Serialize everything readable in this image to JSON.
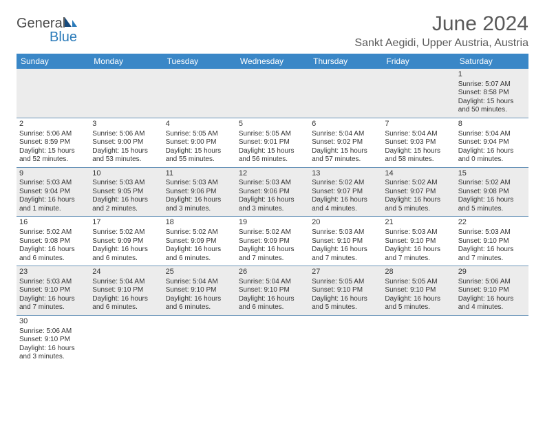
{
  "logo": {
    "text1": "General",
    "text2": "Blue"
  },
  "title": "June 2024",
  "location": "Sankt Aegidi, Upper Austria, Austria",
  "colors": {
    "header_bg": "#3a87c7",
    "header_text": "#ffffff",
    "row_alt_bg": "#ececec",
    "border": "#6a94b8",
    "logo_blue": "#2a7ab9",
    "text": "#333333"
  },
  "weekdays": [
    "Sunday",
    "Monday",
    "Tuesday",
    "Wednesday",
    "Thursday",
    "Friday",
    "Saturday"
  ],
  "weeks": [
    [
      null,
      null,
      null,
      null,
      null,
      null,
      {
        "d": "1",
        "sr": "Sunrise: 5:07 AM",
        "ss": "Sunset: 8:58 PM",
        "dl1": "Daylight: 15 hours",
        "dl2": "and 50 minutes."
      }
    ],
    [
      {
        "d": "2",
        "sr": "Sunrise: 5:06 AM",
        "ss": "Sunset: 8:59 PM",
        "dl1": "Daylight: 15 hours",
        "dl2": "and 52 minutes."
      },
      {
        "d": "3",
        "sr": "Sunrise: 5:06 AM",
        "ss": "Sunset: 9:00 PM",
        "dl1": "Daylight: 15 hours",
        "dl2": "and 53 minutes."
      },
      {
        "d": "4",
        "sr": "Sunrise: 5:05 AM",
        "ss": "Sunset: 9:00 PM",
        "dl1": "Daylight: 15 hours",
        "dl2": "and 55 minutes."
      },
      {
        "d": "5",
        "sr": "Sunrise: 5:05 AM",
        "ss": "Sunset: 9:01 PM",
        "dl1": "Daylight: 15 hours",
        "dl2": "and 56 minutes."
      },
      {
        "d": "6",
        "sr": "Sunrise: 5:04 AM",
        "ss": "Sunset: 9:02 PM",
        "dl1": "Daylight: 15 hours",
        "dl2": "and 57 minutes."
      },
      {
        "d": "7",
        "sr": "Sunrise: 5:04 AM",
        "ss": "Sunset: 9:03 PM",
        "dl1": "Daylight: 15 hours",
        "dl2": "and 58 minutes."
      },
      {
        "d": "8",
        "sr": "Sunrise: 5:04 AM",
        "ss": "Sunset: 9:04 PM",
        "dl1": "Daylight: 16 hours",
        "dl2": "and 0 minutes."
      }
    ],
    [
      {
        "d": "9",
        "sr": "Sunrise: 5:03 AM",
        "ss": "Sunset: 9:04 PM",
        "dl1": "Daylight: 16 hours",
        "dl2": "and 1 minute."
      },
      {
        "d": "10",
        "sr": "Sunrise: 5:03 AM",
        "ss": "Sunset: 9:05 PM",
        "dl1": "Daylight: 16 hours",
        "dl2": "and 2 minutes."
      },
      {
        "d": "11",
        "sr": "Sunrise: 5:03 AM",
        "ss": "Sunset: 9:06 PM",
        "dl1": "Daylight: 16 hours",
        "dl2": "and 3 minutes."
      },
      {
        "d": "12",
        "sr": "Sunrise: 5:03 AM",
        "ss": "Sunset: 9:06 PM",
        "dl1": "Daylight: 16 hours",
        "dl2": "and 3 minutes."
      },
      {
        "d": "13",
        "sr": "Sunrise: 5:02 AM",
        "ss": "Sunset: 9:07 PM",
        "dl1": "Daylight: 16 hours",
        "dl2": "and 4 minutes."
      },
      {
        "d": "14",
        "sr": "Sunrise: 5:02 AM",
        "ss": "Sunset: 9:07 PM",
        "dl1": "Daylight: 16 hours",
        "dl2": "and 5 minutes."
      },
      {
        "d": "15",
        "sr": "Sunrise: 5:02 AM",
        "ss": "Sunset: 9:08 PM",
        "dl1": "Daylight: 16 hours",
        "dl2": "and 5 minutes."
      }
    ],
    [
      {
        "d": "16",
        "sr": "Sunrise: 5:02 AM",
        "ss": "Sunset: 9:08 PM",
        "dl1": "Daylight: 16 hours",
        "dl2": "and 6 minutes."
      },
      {
        "d": "17",
        "sr": "Sunrise: 5:02 AM",
        "ss": "Sunset: 9:09 PM",
        "dl1": "Daylight: 16 hours",
        "dl2": "and 6 minutes."
      },
      {
        "d": "18",
        "sr": "Sunrise: 5:02 AM",
        "ss": "Sunset: 9:09 PM",
        "dl1": "Daylight: 16 hours",
        "dl2": "and 6 minutes."
      },
      {
        "d": "19",
        "sr": "Sunrise: 5:02 AM",
        "ss": "Sunset: 9:09 PM",
        "dl1": "Daylight: 16 hours",
        "dl2": "and 7 minutes."
      },
      {
        "d": "20",
        "sr": "Sunrise: 5:03 AM",
        "ss": "Sunset: 9:10 PM",
        "dl1": "Daylight: 16 hours",
        "dl2": "and 7 minutes."
      },
      {
        "d": "21",
        "sr": "Sunrise: 5:03 AM",
        "ss": "Sunset: 9:10 PM",
        "dl1": "Daylight: 16 hours",
        "dl2": "and 7 minutes."
      },
      {
        "d": "22",
        "sr": "Sunrise: 5:03 AM",
        "ss": "Sunset: 9:10 PM",
        "dl1": "Daylight: 16 hours",
        "dl2": "and 7 minutes."
      }
    ],
    [
      {
        "d": "23",
        "sr": "Sunrise: 5:03 AM",
        "ss": "Sunset: 9:10 PM",
        "dl1": "Daylight: 16 hours",
        "dl2": "and 7 minutes."
      },
      {
        "d": "24",
        "sr": "Sunrise: 5:04 AM",
        "ss": "Sunset: 9:10 PM",
        "dl1": "Daylight: 16 hours",
        "dl2": "and 6 minutes."
      },
      {
        "d": "25",
        "sr": "Sunrise: 5:04 AM",
        "ss": "Sunset: 9:10 PM",
        "dl1": "Daylight: 16 hours",
        "dl2": "and 6 minutes."
      },
      {
        "d": "26",
        "sr": "Sunrise: 5:04 AM",
        "ss": "Sunset: 9:10 PM",
        "dl1": "Daylight: 16 hours",
        "dl2": "and 6 minutes."
      },
      {
        "d": "27",
        "sr": "Sunrise: 5:05 AM",
        "ss": "Sunset: 9:10 PM",
        "dl1": "Daylight: 16 hours",
        "dl2": "and 5 minutes."
      },
      {
        "d": "28",
        "sr": "Sunrise: 5:05 AM",
        "ss": "Sunset: 9:10 PM",
        "dl1": "Daylight: 16 hours",
        "dl2": "and 5 minutes."
      },
      {
        "d": "29",
        "sr": "Sunrise: 5:06 AM",
        "ss": "Sunset: 9:10 PM",
        "dl1": "Daylight: 16 hours",
        "dl2": "and 4 minutes."
      }
    ],
    [
      {
        "d": "30",
        "sr": "Sunrise: 5:06 AM",
        "ss": "Sunset: 9:10 PM",
        "dl1": "Daylight: 16 hours",
        "dl2": "and 3 minutes."
      },
      null,
      null,
      null,
      null,
      null,
      null
    ]
  ]
}
